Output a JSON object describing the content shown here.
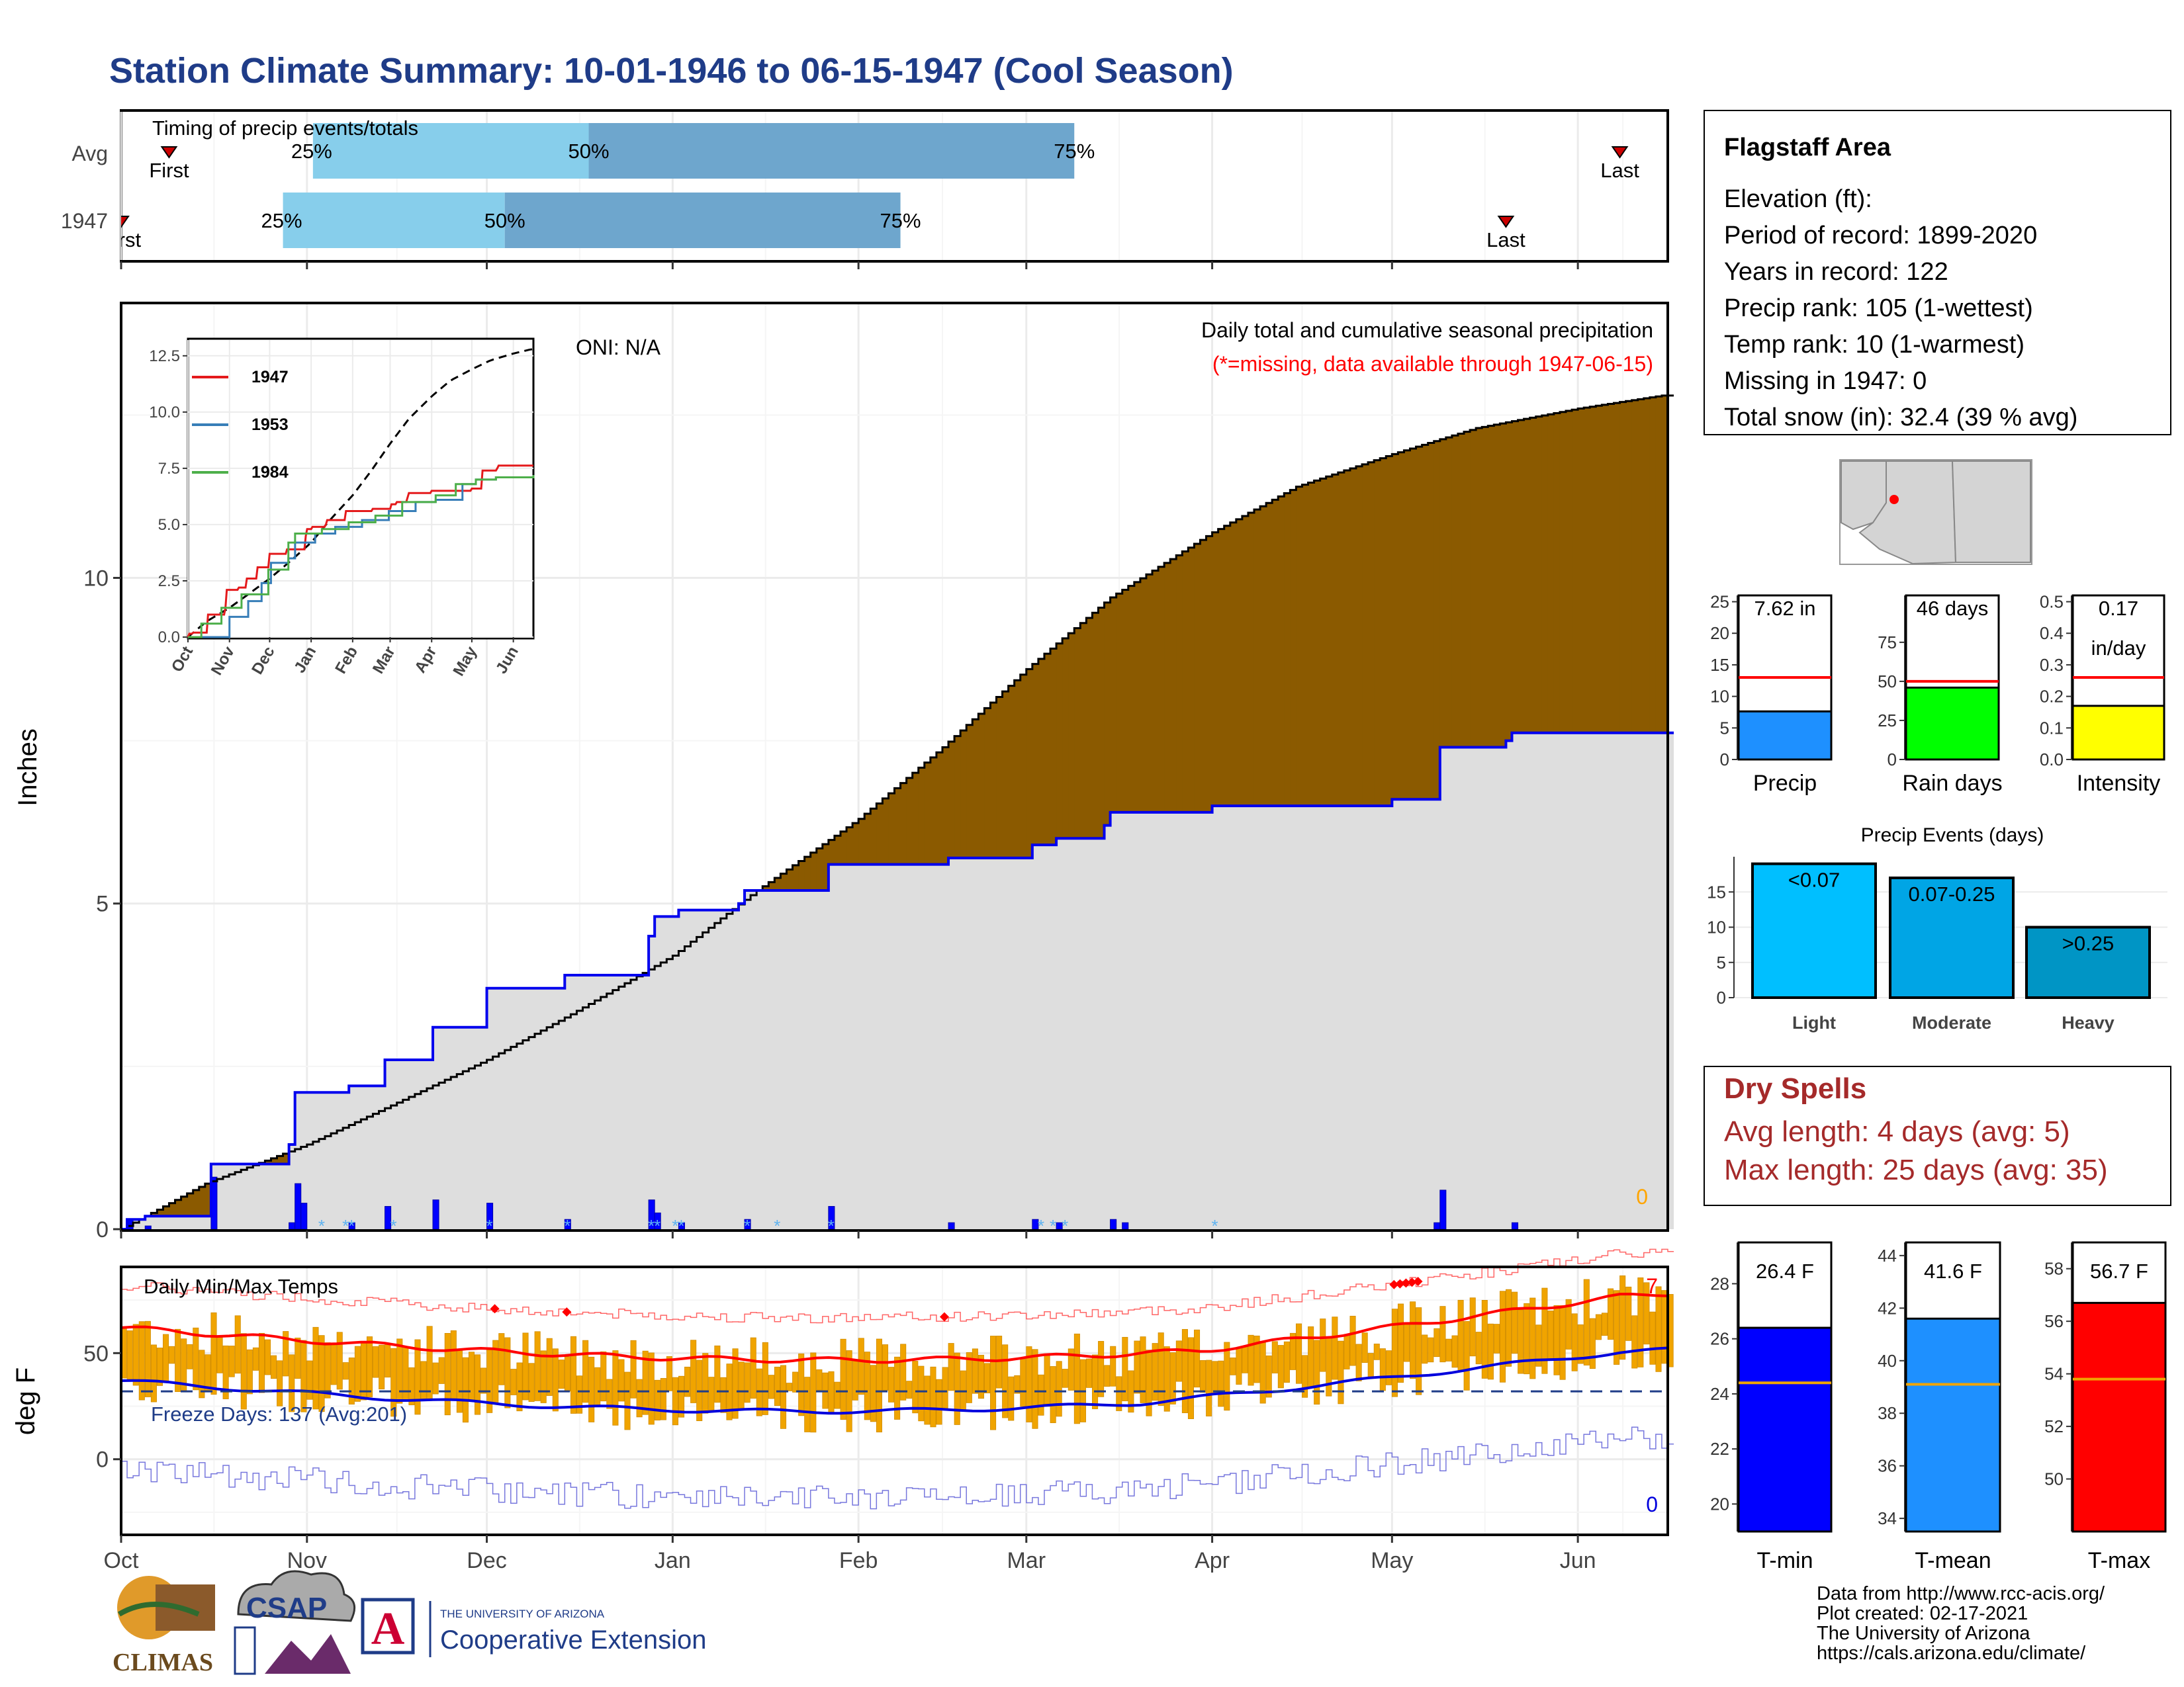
{
  "title": "Station Climate Summary: 10-01-1946 to 06-15-1947 (Cool Season)",
  "timing": {
    "label": "Timing of precip events/totals",
    "rows": [
      {
        "name": "Avg",
        "q25": "1946-11-02",
        "q50": "1946-12-18",
        "q75": "1947-03-09",
        "first": "1946-10-09",
        "last": "1947-06-08",
        "first_label": "First",
        "last_label": "Last"
      },
      {
        "name": "1947",
        "q25": "1946-10-28",
        "q50": "1946-12-04",
        "q75": "1947-02-08",
        "first": "1946-10-01",
        "last": "1947-05-20",
        "first_label": "First",
        "last_label": "Last"
      }
    ],
    "pct_labels": [
      "25%",
      "50%",
      "75%"
    ]
  },
  "precip_panel": {
    "ylabel": "Inches",
    "yticks": [
      0,
      5,
      10
    ],
    "ylim": [
      0,
      14.2
    ],
    "oni": "ONI: N/A",
    "note1": "Daily total and cumulative seasonal precipitation",
    "note2": "(*=missing, data available through 1947-06-15)",
    "zero_count": "0",
    "months": [
      "Oct",
      "Nov",
      "Dec",
      "Jan",
      "Feb",
      "Mar",
      "Apr",
      "May",
      "Jun"
    ],
    "colors": {
      "above": "#008000",
      "below": "#8b5a00",
      "observed_fill": "#dedede",
      "observed_line": "#0000ee",
      "normal_line": "#000000"
    },
    "normal_cum": [
      [
        "1946-10-01",
        0
      ],
      [
        "1946-10-15",
        0.7
      ],
      [
        "1946-11-01",
        1.3
      ],
      [
        "1946-11-15",
        1.9
      ],
      [
        "1946-12-01",
        2.6
      ],
      [
        "1946-12-15",
        3.3
      ],
      [
        "1947-01-01",
        4.2
      ],
      [
        "1947-01-15",
        5.2
      ],
      [
        "1947-02-01",
        6.3
      ],
      [
        "1947-02-15",
        7.4
      ],
      [
        "1947-03-01",
        8.6
      ],
      [
        "1947-03-15",
        9.7
      ],
      [
        "1947-04-01",
        10.7
      ],
      [
        "1947-04-15",
        11.4
      ],
      [
        "1947-05-01",
        11.9
      ],
      [
        "1947-05-15",
        12.3
      ],
      [
        "1947-06-01",
        12.6
      ],
      [
        "1947-06-15",
        12.8
      ]
    ],
    "observed_cum": [
      [
        "1946-10-01",
        0
      ],
      [
        "1946-10-02",
        0.15
      ],
      [
        "1946-10-05",
        0.2
      ],
      [
        "1946-10-16",
        1.0
      ],
      [
        "1946-10-29",
        1.3
      ],
      [
        "1946-10-30",
        2.1
      ],
      [
        "1946-11-07",
        2.1
      ],
      [
        "1946-11-08",
        2.2
      ],
      [
        "1946-11-13",
        2.2
      ],
      [
        "1946-11-14",
        2.6
      ],
      [
        "1946-11-21",
        2.6
      ],
      [
        "1946-11-22",
        3.1
      ],
      [
        "1946-11-30",
        3.1
      ],
      [
        "1946-12-01",
        3.7
      ],
      [
        "1946-12-13",
        3.7
      ],
      [
        "1946-12-14",
        3.9
      ],
      [
        "1946-12-27",
        3.9
      ],
      [
        "1946-12-28",
        4.5
      ],
      [
        "1946-12-29",
        4.8
      ],
      [
        "1947-01-02",
        4.9
      ],
      [
        "1947-01-12",
        5.0
      ],
      [
        "1947-01-13",
        5.2
      ],
      [
        "1947-01-26",
        5.2
      ],
      [
        "1947-01-27",
        5.6
      ],
      [
        "1947-02-15",
        5.6
      ],
      [
        "1947-02-16",
        5.7
      ],
      [
        "1947-03-01",
        5.7
      ],
      [
        "1947-03-02",
        5.9
      ],
      [
        "1947-03-05",
        5.9
      ],
      [
        "1947-03-06",
        6.0
      ],
      [
        "1947-03-14",
        6.2
      ],
      [
        "1947-03-15",
        6.4
      ],
      [
        "1947-04-01",
        6.5
      ],
      [
        "1947-04-15",
        6.5
      ],
      [
        "1947-05-01",
        6.6
      ],
      [
        "1947-05-08",
        6.6
      ],
      [
        "1947-05-09",
        7.4
      ],
      [
        "1947-05-20",
        7.5
      ],
      [
        "1947-05-21",
        7.62
      ],
      [
        "1947-06-15",
        7.62
      ]
    ],
    "daily": [
      [
        "1946-10-02",
        0.15
      ],
      [
        "1946-10-05",
        0.05
      ],
      [
        "1946-10-16",
        0.8
      ],
      [
        "1946-10-29",
        0.1
      ],
      [
        "1946-10-30",
        0.7
      ],
      [
        "1946-10-31",
        0.4
      ],
      [
        "1946-11-08",
        0.1
      ],
      [
        "1946-11-14",
        0.35
      ],
      [
        "1946-11-22",
        0.45
      ],
      [
        "1946-12-01",
        0.4
      ],
      [
        "1946-12-14",
        0.15
      ],
      [
        "1946-12-28",
        0.45
      ],
      [
        "1946-12-29",
        0.25
      ],
      [
        "1947-01-02",
        0.1
      ],
      [
        "1947-01-13",
        0.15
      ],
      [
        "1947-01-27",
        0.35
      ],
      [
        "1947-02-16",
        0.1
      ],
      [
        "1947-03-02",
        0.15
      ],
      [
        "1947-03-06",
        0.1
      ],
      [
        "1947-03-15",
        0.15
      ],
      [
        "1947-03-17",
        0.1
      ],
      [
        "1947-05-08",
        0.1
      ],
      [
        "1947-05-09",
        0.6
      ],
      [
        "1947-05-21",
        0.1
      ]
    ],
    "snow_days": [
      "1946-11-03",
      "1946-11-07",
      "1946-11-08",
      "1946-11-15",
      "1946-12-01",
      "1946-12-14",
      "1946-12-28",
      "1946-12-29",
      "1947-01-01",
      "1947-01-02",
      "1947-01-13",
      "1947-01-18",
      "1947-01-27",
      "1947-03-03",
      "1947-03-05",
      "1947-03-07",
      "1947-04-01"
    ]
  },
  "inset": {
    "yticks": [
      "0.0",
      "2.5",
      "5.0",
      "7.5",
      "10.0",
      "12.5"
    ],
    "months": [
      "Oct",
      "Nov",
      "Dec",
      "Jan",
      "Feb",
      "Mar",
      "Apr",
      "May",
      "Jun"
    ],
    "series": [
      {
        "name": "1947",
        "color": "#e41a1c"
      },
      {
        "name": "1953",
        "color": "#377eb8"
      },
      {
        "name": "1984",
        "color": "#4daf4a"
      }
    ]
  },
  "temp_panel": {
    "ylabel": "deg F",
    "yticks": [
      0,
      50
    ],
    "ylim": [
      -35,
      90
    ],
    "label": "Daily Min/Max Temps",
    "freeze": "Freeze Days: 137 (Avg:201)",
    "freeze_line": 32,
    "count_top": "7",
    "count_bottom": "0",
    "months": [
      "Oct",
      "Nov",
      "Dec",
      "Jan",
      "Feb",
      "Mar",
      "Apr",
      "May",
      "Jun"
    ],
    "colors": {
      "bars": "#f0a400",
      "tmax_avg": "#ff0000",
      "tmin_avg": "#0000dd",
      "record_hi": "#ff6666",
      "record_lo": "#7777dd"
    },
    "record_marks": [
      "1946-12-02",
      "1946-12-14",
      "1947-02-15",
      "1947-05-01",
      "1947-05-02",
      "1947-05-03",
      "1947-05-04",
      "1947-05-05"
    ]
  },
  "info": {
    "station": "Flagstaff Area",
    "lines": [
      "Elevation (ft):",
      "Period of record: 1899-2020",
      "Years in record: 122",
      "Precip rank: 105 (1-wettest)",
      "Temp rank: 10 (1-warmest)",
      "Missing in 1947: 0",
      "Total snow (in): 32.4 (39 % avg)"
    ]
  },
  "precip_bars": [
    {
      "name": "Precip",
      "label": "7.62 in",
      "value": 7.62,
      "avg": 13,
      "ylim": [
        0,
        26
      ],
      "yticks": [
        "0",
        "5",
        "10",
        "15",
        "20",
        "25"
      ],
      "color": "#1e90ff"
    },
    {
      "name": "Rain days",
      "label": "46 days",
      "value": 46,
      "avg": 50,
      "ylim": [
        0,
        105
      ],
      "yticks": [
        "0",
        "25",
        "50",
        "75"
      ],
      "color": "#00ff00"
    },
    {
      "name": "Intensity",
      "label": "0.17",
      "label2": "in/day",
      "value": 0.17,
      "avg": 0.26,
      "ylim": [
        0,
        0.52
      ],
      "yticks": [
        "0.0",
        "0.1",
        "0.2",
        "0.3",
        "0.4",
        "0.5"
      ],
      "color": "#ffff00"
    }
  ],
  "events": {
    "title": "Precip Events (days)",
    "yticks": [
      "0",
      "5",
      "10",
      "15"
    ],
    "ylim": [
      0,
      20
    ],
    "bars": [
      {
        "name": "Light",
        "label": "<0.07",
        "value": 19,
        "color": "#00bfff"
      },
      {
        "name": "Moderate",
        "label": "0.07-0.25",
        "value": 17,
        "color": "#00a5e5"
      },
      {
        "name": "Heavy",
        "label": ">0.25",
        "value": 10,
        "color": "#0095c5"
      }
    ]
  },
  "dry": {
    "title": "Dry Spells",
    "avg": "Avg length: 4 days (avg: 5)",
    "max": "Max length: 25 days (avg: 35)"
  },
  "temp_bars": [
    {
      "name": "T-min",
      "label": "26.4 F",
      "value": 26.4,
      "avg": 24.4,
      "ylim": [
        19,
        29.5
      ],
      "yticks": [
        "20",
        "22",
        "24",
        "26",
        "28"
      ],
      "color": "#0000ff"
    },
    {
      "name": "T-mean",
      "label": "41.6 F",
      "value": 41.6,
      "avg": 39.1,
      "ylim": [
        33.5,
        44.5
      ],
      "yticks": [
        "34",
        "36",
        "38",
        "40",
        "42",
        "44"
      ],
      "color": "#1e90ff"
    },
    {
      "name": "T-max",
      "label": "56.7 F",
      "value": 56.7,
      "avg": 53.8,
      "ylim": [
        48,
        59
      ],
      "yticks": [
        "50",
        "52",
        "54",
        "56",
        "58"
      ],
      "color": "#ff0000"
    }
  ],
  "footer": {
    "lines": [
      "Data from http://www.rcc-acis.org/",
      "Plot created: 02-17-2021",
      "The University of Arizona",
      "https://cals.arizona.edu/climate/"
    ],
    "climas": "CLIMAS",
    "csap": "CSAP",
    "ua_small": "THE UNIVERSITY OF ARIZONA",
    "ua_big": "Cooperative Extension",
    "ua_letter": "A"
  }
}
